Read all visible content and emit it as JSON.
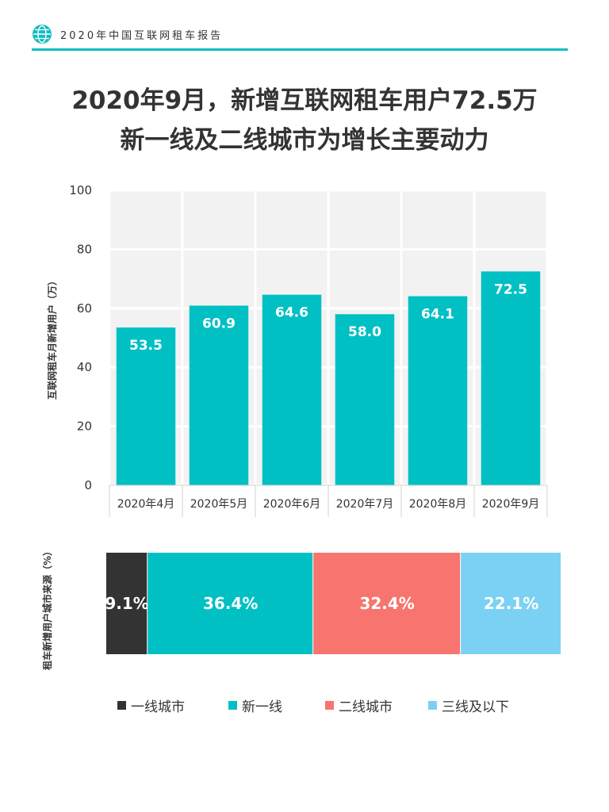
{
  "header": {
    "title": "2020年中国互联网租车报告",
    "icon": "globe-icon",
    "accent_color": "#14bdc1"
  },
  "title": {
    "line1": "2020年9月，新增互联网租车用户72.5万",
    "line2": "新一线及二线城市为增长主要动力"
  },
  "chart_data": [
    {
      "type": "bar",
      "categories": [
        "2020年4月",
        "2020年5月",
        "2020年6月",
        "2020年7月",
        "2020年8月",
        "2020年9月"
      ],
      "values": [
        53.5,
        60.9,
        64.6,
        58.0,
        64.1,
        72.5
      ],
      "value_labels": [
        "53.5",
        "60.9",
        "64.6",
        "58.0",
        "64.1",
        "72.5"
      ],
      "ylabel": "互联网租车月新增用户（万）",
      "yticks": [
        "0",
        "20",
        "40",
        "60",
        "80",
        "100"
      ],
      "ylim": [
        0,
        100
      ],
      "grid": true,
      "bar_color": "#00c0c4",
      "plot_background": "#f2f2f2"
    },
    {
      "type": "bar",
      "stacked": true,
      "orientation": "horizontal",
      "ylabel": "租车新增用户城市来源（%）",
      "series": [
        {
          "name": "一线城市",
          "values": [
            9.1
          ],
          "label": "9.1%",
          "color": "#333333"
        },
        {
          "name": "新一线",
          "values": [
            36.4
          ],
          "label": "36.4%",
          "color": "#00c0c4"
        },
        {
          "name": "二线城市",
          "values": [
            32.4
          ],
          "label": "32.4%",
          "color": "#f7756e"
        },
        {
          "name": "三线及以下",
          "values": [
            22.1
          ],
          "label": "22.1%",
          "color": "#7ad1f3"
        }
      ],
      "legend": "bottom"
    }
  ]
}
